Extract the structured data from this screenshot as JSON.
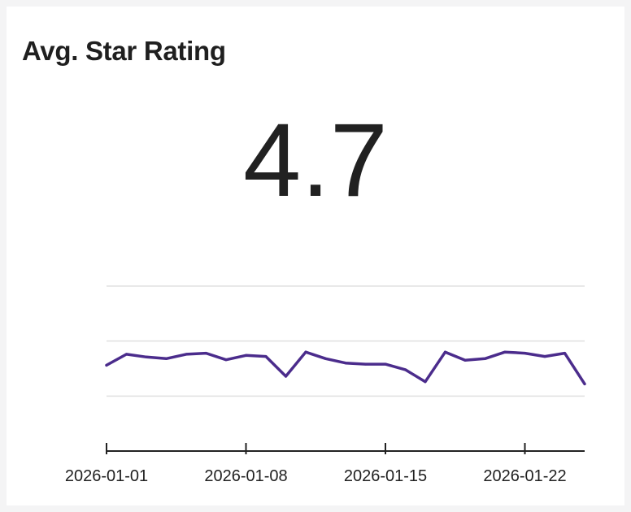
{
  "card": {
    "title": "Avg. Star Rating",
    "value": "4.7"
  },
  "colors": {
    "line": "#4b2c8c",
    "grid": "#e0e0e0",
    "axis": "#222222",
    "text": "#212121"
  },
  "chart_data": {
    "type": "line",
    "title": "",
    "xlabel": "",
    "ylabel": "",
    "x": [
      "2026-01-01",
      "2026-01-02",
      "2026-01-03",
      "2026-01-04",
      "2026-01-05",
      "2026-01-06",
      "2026-01-07",
      "2026-01-08",
      "2026-01-09",
      "2026-01-10",
      "2026-01-11",
      "2026-01-12",
      "2026-01-13",
      "2026-01-14",
      "2026-01-15",
      "2026-01-16",
      "2026-01-17",
      "2026-01-18",
      "2026-01-19",
      "2026-01-20",
      "2026-01-21",
      "2026-01-22",
      "2026-01-23",
      "2026-01-24",
      "2026-01-25"
    ],
    "series": [
      {
        "name": "",
        "values": [
          4.56,
          4.76,
          4.71,
          4.68,
          4.76,
          4.78,
          4.66,
          4.74,
          4.72,
          4.36,
          4.8,
          4.68,
          4.6,
          4.58,
          4.58,
          4.48,
          4.26,
          4.8,
          4.65,
          4.68,
          4.8,
          4.78,
          4.72,
          4.78,
          4.22
        ]
      }
    ],
    "ylim": [
      3.0,
      6.0
    ],
    "yticks": [
      4.0,
      5.0,
      6.0
    ],
    "xticks": [
      "2026-01-01",
      "2026-01-08",
      "2026-01-15",
      "2026-01-22"
    ],
    "grid": true,
    "legend": "none"
  }
}
